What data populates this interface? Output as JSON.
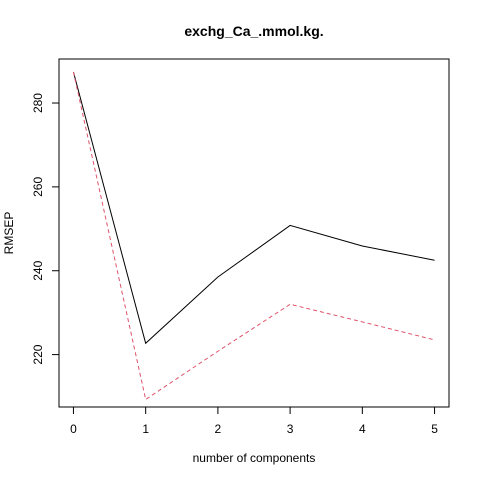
{
  "chart_data": {
    "type": "line",
    "title": "exchg_Ca_.mmol.kg.",
    "xlabel": "number of components",
    "ylabel": "RMSEP",
    "x": [
      0,
      1,
      2,
      3,
      4,
      5
    ],
    "xlim": [
      -0.2,
      5.2
    ],
    "ylim": [
      207.5,
      290.5
    ],
    "x_ticks": [
      "0",
      "1",
      "2",
      "3",
      "4",
      "5"
    ],
    "y_ticks": [
      "220",
      "240",
      "260",
      "280"
    ],
    "grid": false,
    "series": [
      {
        "values": [
          287.4,
          222.7,
          238.5,
          250.8,
          245.9,
          242.5
        ],
        "color": "#000000",
        "style": "solid"
      },
      {
        "values": [
          287.4,
          209.3,
          220.8,
          232.0,
          227.8,
          223.5
        ],
        "color": "#DF536B",
        "style": "dashed"
      }
    ]
  }
}
